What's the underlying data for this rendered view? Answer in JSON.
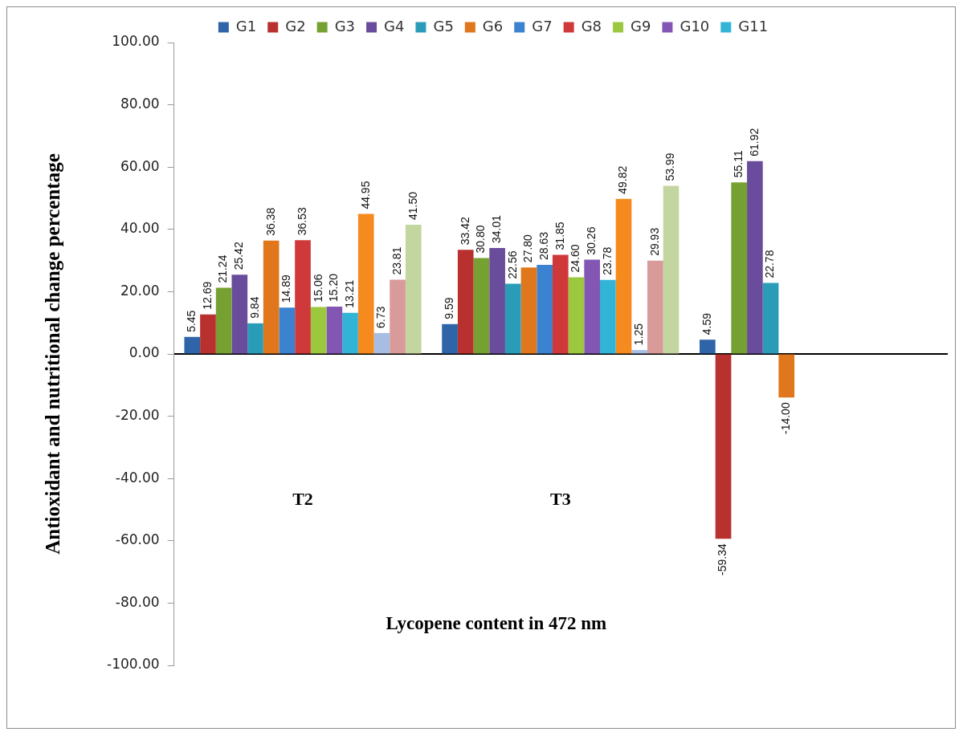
{
  "chart_data": {
    "type": "bar",
    "ylabel": "Antioxidant and nutritional change percentage",
    "xlabel": "Lycopene content in 472 nm",
    "categories": [
      "T2",
      "T3",
      null
    ],
    "ylim": [
      -100,
      100
    ],
    "yticks": [
      {
        "value": -100,
        "label": "-100.00"
      },
      {
        "value": -80,
        "label": "-80.00"
      },
      {
        "value": -60,
        "label": "-60.00"
      },
      {
        "value": -40,
        "label": "-40.00"
      },
      {
        "value": -20,
        "label": "-20.00"
      },
      {
        "value": 0,
        "label": "0.00"
      },
      {
        "value": 20,
        "label": "20.00"
      },
      {
        "value": 40,
        "label": "40.00"
      },
      {
        "value": 60,
        "label": "60.00"
      },
      {
        "value": 80,
        "label": "80.00"
      },
      {
        "value": 100,
        "label": "100.00"
      }
    ],
    "legend": "top",
    "series": [
      {
        "name": "G1",
        "color": "#2f64a8",
        "values": [
          5.45,
          9.59,
          4.59
        ],
        "value_labels": [
          "5.45",
          "9.59",
          "4.59"
        ]
      },
      {
        "name": "G2",
        "color": "#b8312f",
        "values": [
          12.69,
          33.42,
          -59.34
        ],
        "value_labels": [
          "12.69",
          "33.42",
          "-59.34"
        ]
      },
      {
        "name": "G3",
        "color": "#77a033",
        "values": [
          21.24,
          30.8,
          55.11
        ],
        "value_labels": [
          "21.24",
          "30.80",
          "55.11"
        ]
      },
      {
        "name": "G4",
        "color": "#6a4c9c",
        "values": [
          25.42,
          34.01,
          61.92
        ],
        "value_labels": [
          "25.42",
          "34.01",
          "61.92"
        ]
      },
      {
        "name": "G5",
        "color": "#2b9cb8",
        "values": [
          9.84,
          22.56,
          22.78
        ],
        "value_labels": [
          "9.84",
          "22.56",
          "22.78"
        ]
      },
      {
        "name": "G6",
        "color": "#e0771d",
        "values": [
          36.38,
          27.8,
          -14.0
        ],
        "value_labels": [
          "36.38",
          "27.80",
          "-14.00"
        ]
      },
      {
        "name": "G7",
        "color": "#3b82d0",
        "values": [
          14.89,
          28.63,
          null
        ],
        "value_labels": [
          "14.89",
          "28.63",
          null
        ]
      },
      {
        "name": "G8",
        "color": "#d0393a",
        "values": [
          36.53,
          31.85,
          null
        ],
        "value_labels": [
          "36.53",
          "31.85",
          null
        ]
      },
      {
        "name": "G9",
        "color": "#9bc83e",
        "values": [
          15.06,
          24.6,
          null
        ],
        "value_labels": [
          "15.06",
          "24.60",
          null
        ]
      },
      {
        "name": "G10",
        "color": "#8456b4",
        "values": [
          15.2,
          30.26,
          null
        ],
        "value_labels": [
          "15.20",
          "30.26",
          null
        ]
      },
      {
        "name": "G11",
        "color": "#32b4d6",
        "values": [
          13.21,
          23.78,
          null
        ],
        "value_labels": [
          "13.21",
          "23.78",
          null
        ]
      },
      {
        "color": "#f58a1f",
        "values": [
          44.95,
          49.82,
          null
        ],
        "value_labels": [
          "44.95",
          "49.82",
          null
        ]
      },
      {
        "color": "#a7bde3",
        "values": [
          6.73,
          1.25,
          null
        ],
        "value_labels": [
          "6.73",
          "1.25",
          null
        ]
      },
      {
        "color": "#d99a9a",
        "values": [
          23.81,
          29.93,
          null
        ],
        "value_labels": [
          "23.81",
          "29.93",
          null
        ]
      },
      {
        "color": "#c4d6a0",
        "values": [
          41.5,
          53.99,
          null
        ],
        "value_labels": [
          "41.50",
          "53.99",
          null
        ]
      }
    ]
  }
}
